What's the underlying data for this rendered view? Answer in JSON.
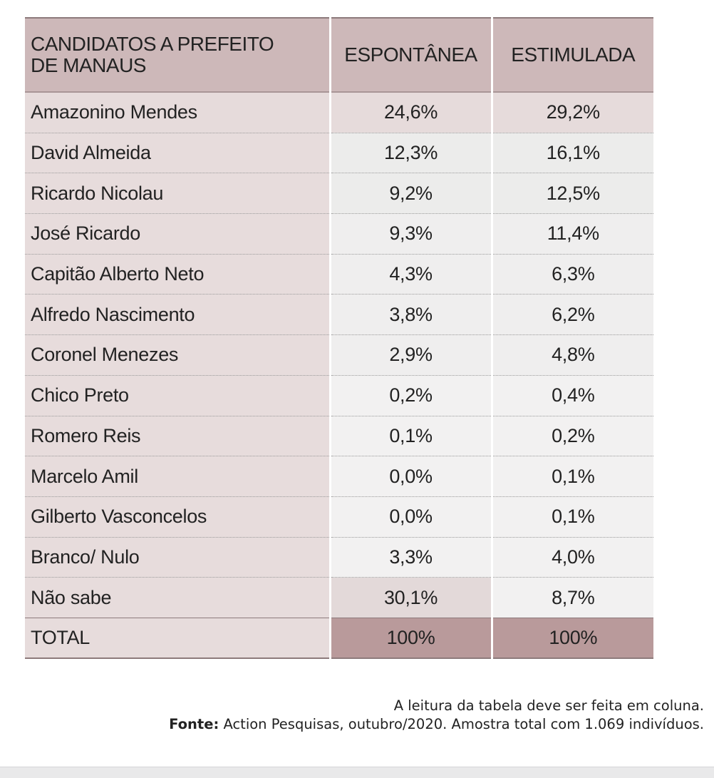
{
  "table": {
    "header": [
      "CANDIDATOS A PREFEITO DE MANAUS",
      "ESPONTÂNEA",
      "ESTIMULADA"
    ],
    "rows": [
      [
        "Amazonino Mendes",
        "24,6%",
        "29,2%"
      ],
      [
        "David Almeida",
        "12,3%",
        "16,1%"
      ],
      [
        "Ricardo Nicolau",
        "9,2%",
        "12,5%"
      ],
      [
        "José Ricardo",
        "9,3%",
        "11,4%"
      ],
      [
        "Capitão Alberto Neto",
        "4,3%",
        "6,3%"
      ],
      [
        "Alfredo Nascimento",
        "3,8%",
        "6,2%"
      ],
      [
        "Coronel Menezes",
        "2,9%",
        "4,8%"
      ],
      [
        "Chico Preto",
        "0,2%",
        "0,4%"
      ],
      [
        "Romero Reis",
        "0,1%",
        "0,2%"
      ],
      [
        "Marcelo Amil",
        "0,0%",
        "0,1%"
      ],
      [
        "Gilberto Vasconcelos",
        "0,0%",
        "0,1%"
      ],
      [
        "Branco/ Nulo",
        "3,3%",
        "4,0%"
      ],
      [
        "Não sabe",
        "30,1%",
        "8,7%"
      ]
    ],
    "total": [
      "TOTAL",
      "100%",
      "100%"
    ]
  },
  "footer": {
    "note": "A leitura da tabela deve ser feita em coluna.",
    "source_label": "Fonte:",
    "source_text": "Action Pesquisas, outubro/2020. Amostra total com 1.069 indivíduos."
  }
}
